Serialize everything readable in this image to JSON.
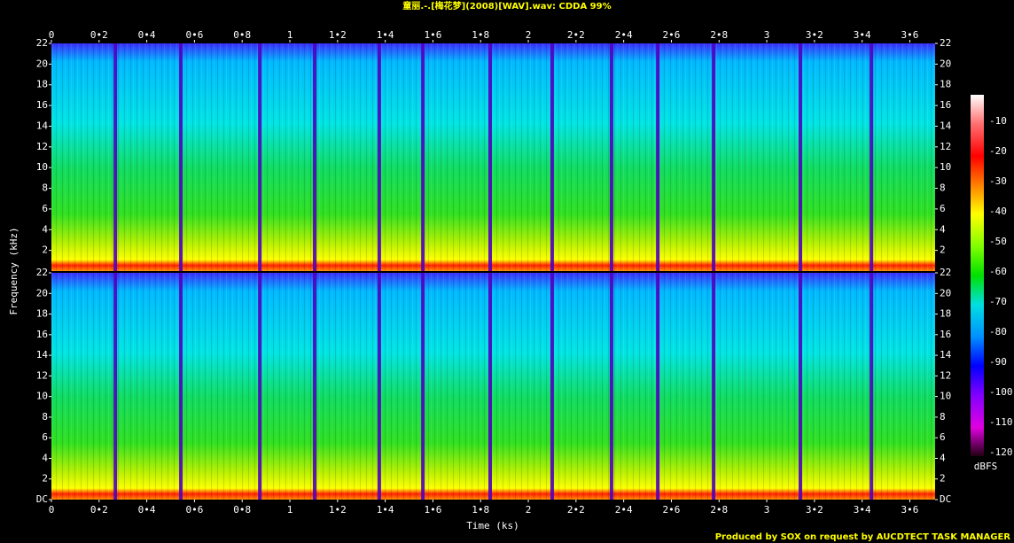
{
  "chart_data": {
    "type": "spectrogram",
    "title": "童丽.-.[梅花梦](2008)[WAV].wav: CDDA 99%",
    "xlabel": "Time (ks)",
    "ylabel": "Frequency (kHz)",
    "footer": "Produced by SOX on request by AUCDTECT TASK MANAGER",
    "xlim": [
      0,
      3.706
    ],
    "xticks": [
      0,
      {
        "value": 0.2,
        "label": "0•2"
      },
      {
        "value": 0.4,
        "label": "0•4"
      },
      {
        "value": 0.6,
        "label": "0•6"
      },
      {
        "value": 0.8,
        "label": "0•8"
      },
      1,
      {
        "value": 1.2,
        "label": "1•2"
      },
      {
        "value": 1.4,
        "label": "1•4"
      },
      {
        "value": 1.6,
        "label": "1•6"
      },
      {
        "value": 1.8,
        "label": "1•8"
      },
      2,
      {
        "value": 2.2,
        "label": "2•2"
      },
      {
        "value": 2.4,
        "label": "2•4"
      },
      {
        "value": 2.6,
        "label": "2•6"
      },
      {
        "value": 2.8,
        "label": "2•8"
      },
      3,
      {
        "value": 3.2,
        "label": "3•2"
      },
      {
        "value": 3.4,
        "label": "3•4"
      },
      {
        "value": 3.6,
        "label": "3•6"
      }
    ],
    "ylim": [
      0,
      22
    ],
    "channels": [
      {
        "yticks": [
          2,
          4,
          6,
          8,
          10,
          12,
          14,
          16,
          18,
          20,
          22
        ]
      },
      {
        "yticks": [
          {
            "value": 0,
            "label": "DC"
          },
          2,
          4,
          6,
          8,
          10,
          12,
          14,
          16,
          18,
          20,
          22
        ]
      }
    ],
    "track_boundaries": [
      0.268,
      0.543,
      0.874,
      1.104,
      1.375,
      1.558,
      1.84,
      2.1,
      2.349,
      2.543,
      2.777,
      3.141,
      3.439
    ],
    "colorbar": {
      "label": "dBFS",
      "lim": [
        -120,
        0
      ],
      "ticks": [
        -10,
        -20,
        -30,
        -40,
        -50,
        -60,
        -70,
        -80,
        -90,
        -100,
        -110,
        -120
      ]
    }
  }
}
